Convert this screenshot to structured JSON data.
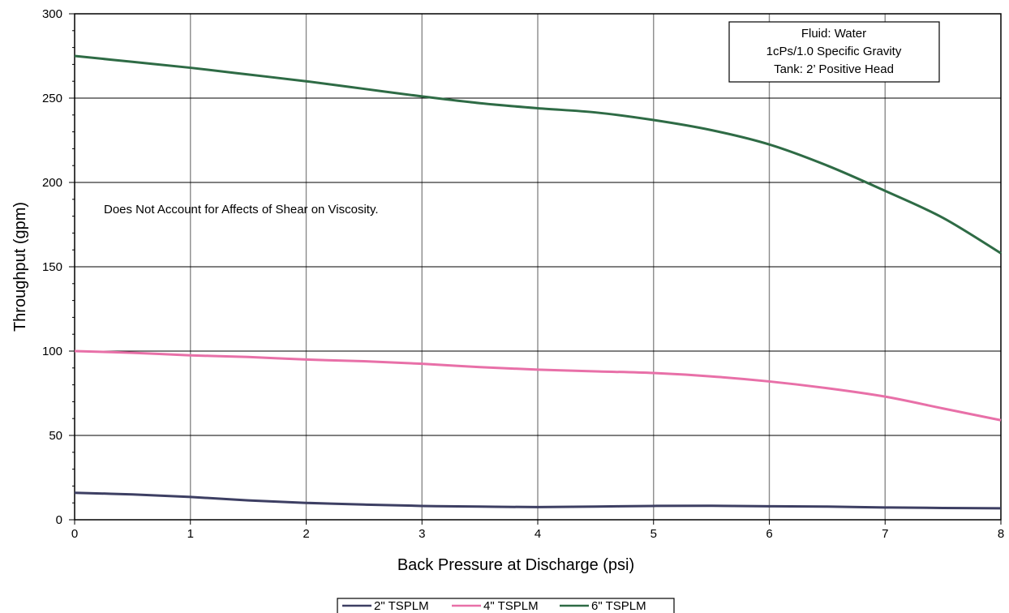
{
  "chart_data": {
    "type": "line",
    "title": "",
    "xlabel": "Back Pressure at Discharge (psi)",
    "ylabel": "Throughput (gpm)",
    "xlim": [
      0,
      8
    ],
    "ylim": [
      0,
      300
    ],
    "x_ticks": [
      "0",
      "1",
      "2",
      "3",
      "4",
      "5",
      "6",
      "7",
      "8"
    ],
    "y_ticks": [
      "0",
      "50",
      "100",
      "150",
      "200",
      "250",
      "300"
    ],
    "grid": true,
    "legend_position": "bottom-center",
    "series": [
      {
        "name": "2\" TSPLM",
        "color": "#3d3f63",
        "x": [
          0,
          0.5,
          1,
          1.5,
          2,
          2.5,
          3,
          3.5,
          4,
          4.5,
          5,
          5.5,
          6,
          6.5,
          7,
          7.5,
          8
        ],
        "y": [
          16,
          15,
          13.5,
          11.5,
          10,
          9,
          8.2,
          7.8,
          7.5,
          7.8,
          8.2,
          8.3,
          8,
          7.8,
          7.3,
          7,
          6.8
        ]
      },
      {
        "name": "4\" TSPLM",
        "color": "#e870a8",
        "x": [
          0,
          0.5,
          1,
          1.5,
          2,
          2.5,
          3,
          3.5,
          4,
          4.5,
          5,
          5.5,
          6,
          6.5,
          7,
          7.5,
          8
        ],
        "y": [
          100,
          99,
          97.5,
          96.5,
          95,
          94,
          92.5,
          90.5,
          89,
          88,
          87,
          85,
          82,
          78,
          73,
          66,
          59
        ]
      },
      {
        "name": "6\" TSPLM",
        "color": "#2e6b45",
        "x": [
          0,
          0.5,
          1,
          1.5,
          2,
          2.5,
          3,
          3.5,
          4,
          4.5,
          5,
          5.5,
          6,
          6.5,
          7,
          7.5,
          8
        ],
        "y": [
          275,
          271.5,
          268,
          264,
          260,
          255.5,
          251,
          247,
          244,
          241.5,
          237,
          231,
          222.5,
          210,
          195,
          179,
          158
        ]
      }
    ],
    "annotations": [
      "Does Not Account for Affects of Shear on Viscosity."
    ],
    "info_box": [
      "Fluid: Water",
      "1cPs/1.0 Specific Gravity",
      "Tank: 2’ Positive Head"
    ]
  }
}
